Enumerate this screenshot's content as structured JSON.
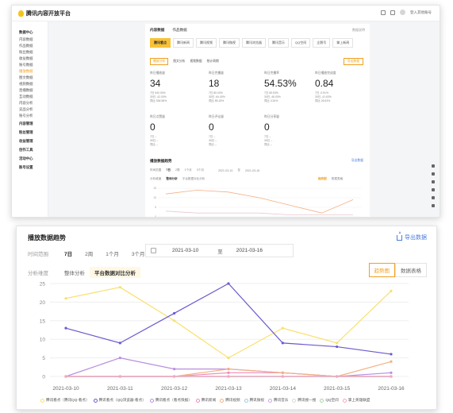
{
  "top": {
    "brand": "腾讯内容开放平台",
    "user_area": "登入其他账号",
    "sidebar": [
      {
        "label": "数据中心",
        "group": true,
        "active": false
      },
      {
        "label": "内容数据",
        "group": false,
        "active": false
      },
      {
        "label": "作品数据",
        "group": false,
        "active": false
      },
      {
        "label": "粉丝数据",
        "group": false,
        "active": false
      },
      {
        "label": "收益数据",
        "group": false,
        "active": false
      },
      {
        "label": "账号数据",
        "group": false,
        "active": false
      },
      {
        "label": "播放数据",
        "group": false,
        "active": true
      },
      {
        "label": "图文数据",
        "group": false,
        "active": false
      },
      {
        "label": "视频数据",
        "group": false,
        "active": false
      },
      {
        "label": "直播数据",
        "group": false,
        "active": false
      },
      {
        "label": "互动数据",
        "group": false,
        "active": false
      },
      {
        "label": "内容分析",
        "group": false,
        "active": false
      },
      {
        "label": "竞品分析",
        "group": false,
        "active": false
      },
      {
        "label": "账号分析",
        "group": false,
        "active": false
      },
      {
        "label": "内容管理",
        "group": true,
        "active": false
      },
      {
        "label": "粉丝管理",
        "group": true,
        "active": false
      },
      {
        "label": "收益管理",
        "group": true,
        "active": false
      },
      {
        "label": "创作工具",
        "group": true,
        "active": false
      },
      {
        "label": "活动中心",
        "group": true,
        "active": false
      },
      {
        "label": "账号设置",
        "group": true,
        "active": false
      }
    ],
    "page_tabs": [
      "内容数据",
      "作品数据"
    ],
    "page_right": "数据说明",
    "platforms": [
      "腾讯看点",
      "腾讯新闻",
      "腾讯视频",
      "腾讯微视",
      "腾讯浏览器",
      "腾讯音乐",
      "QQ空间",
      "企鹅号",
      "掌上新闻"
    ],
    "subtabs": [
      "播放分析",
      "图文分析",
      "视频数据"
    ],
    "subtab_note": "统计周期",
    "export_small": "导出数据",
    "metrics": [
      {
        "label": "昨日播放量",
        "value": "34",
        "sub1": "7日 540.00%",
        "sub2": "30日 -42.00%",
        "sub3": "同比 536.58%"
      },
      {
        "label": "昨日完播量",
        "value": "18",
        "sub1": "7日 80.00%",
        "sub2": "30日 -64.40%",
        "sub3": "同比 85.18%"
      },
      {
        "label": "昨日完播率",
        "value": "54.53%",
        "sub1": "7日 65.53%",
        "sub2": "30日 -46.00%",
        "sub3": "同比 3.34%"
      },
      {
        "label": "昨日播放完成度",
        "value": "0.84",
        "sub1": "7日 -0.91%",
        "sub2": "30日 -41.63%",
        "sub3": "同比 26.63%"
      },
      {
        "label": "昨日点赞量",
        "value": "0",
        "sub1": "7日 --",
        "sub2": "30日 --",
        "sub3": "同比 --"
      },
      {
        "label": "昨日评论量",
        "value": "0",
        "sub1": "7日 --",
        "sub2": "30日 --",
        "sub3": "同比 --"
      },
      {
        "label": "昨日分享量",
        "value": "0",
        "sub1": "7日 --",
        "sub2": "30日 --",
        "sub3": "同比 --"
      }
    ],
    "mini_title": "播放数据趋势",
    "mini_export": "导出数据",
    "mini_range_label": "时间范围",
    "mini_ranges": [
      "7日",
      "2周",
      "1个月",
      "3个月"
    ],
    "mini_date_from": "2021-03-10",
    "mini_to": "至",
    "mini_date_to": "2021-03-16",
    "mini_anal_label": "分析维度",
    "mini_anal": [
      "整体分析",
      "平台数据对比分析"
    ],
    "mini_toggle": [
      "趋势图",
      "数据表格"
    ]
  },
  "main": {
    "title": "播放数据趋势",
    "export_label": "导出数据",
    "time_range_label": "时间范围",
    "ranges": [
      "7日",
      "2周",
      "1个月",
      "3个月"
    ],
    "active_range": "7日",
    "date_from": "2021-03-10",
    "date_to_word": "至",
    "date_to": "2021-03-16",
    "analysis_label": "分析维度",
    "analysis_tabs": [
      "整体分析",
      "平台数据对比分析"
    ],
    "active_analysis": "平台数据对比分析",
    "view_toggle": [
      "趋势图",
      "数据表格"
    ],
    "active_view": "趋势图"
  },
  "chart_data": {
    "type": "line",
    "categories": [
      "2021-03-10",
      "2021-03-11",
      "2021-03-12",
      "2021-03-13",
      "2021-03-14",
      "2021-03-15",
      "2021-03-16"
    ],
    "ylim": [
      0,
      25
    ],
    "yticks": [
      0,
      5,
      10,
      15,
      20,
      25
    ],
    "grid": true,
    "legend_position": "bottom",
    "series": [
      {
        "name": "腾讯看点（腾讯QQ-看点）",
        "color": "#f9e06b",
        "values": [
          21,
          24,
          15,
          5,
          13,
          9,
          23
        ]
      },
      {
        "name": "腾讯看点（QQ浏览器-看点）",
        "color": "#6a5acd",
        "values": [
          13,
          9,
          17,
          25,
          9,
          8,
          6
        ]
      },
      {
        "name": "腾讯看点（看点快报）",
        "color": "#b98ee0",
        "values": [
          0,
          5,
          2,
          2,
          1,
          0,
          1
        ]
      },
      {
        "name": "腾讯新闻",
        "color": "#f08bb7",
        "values": [
          0,
          0,
          0,
          1,
          1,
          0,
          0
        ]
      },
      {
        "name": "腾讯视频",
        "color": "#f4b183",
        "values": [
          0,
          0,
          0,
          2,
          1,
          0,
          4
        ]
      },
      {
        "name": "腾讯微视",
        "color": "#9ecae1",
        "values": [
          0,
          0,
          0,
          0,
          0,
          0,
          0
        ]
      },
      {
        "name": "腾讯音乐",
        "color": "#c6a5e8",
        "values": [
          0,
          0,
          0,
          0,
          0,
          0,
          0
        ]
      },
      {
        "name": "腾讯搜一搜",
        "color": "#d9d9d9",
        "values": [
          0,
          0,
          0,
          0,
          0,
          0,
          0
        ]
      },
      {
        "name": "QQ空间",
        "color": "#a6d4a0",
        "values": [
          0,
          0,
          0,
          0,
          0,
          0,
          0
        ]
      },
      {
        "name": "掌上英雄联盟",
        "color": "#f7a6c0",
        "values": [
          0,
          0,
          0,
          0,
          0,
          0,
          0
        ]
      }
    ]
  },
  "mini_chart_data": {
    "type": "line",
    "series": [
      {
        "color": "#f4b183",
        "values": [
          12,
          14,
          13,
          10,
          6,
          2,
          9
        ]
      },
      {
        "color": "#e8c8d0",
        "values": [
          3,
          2,
          2,
          2,
          1,
          1,
          1
        ]
      }
    ]
  }
}
